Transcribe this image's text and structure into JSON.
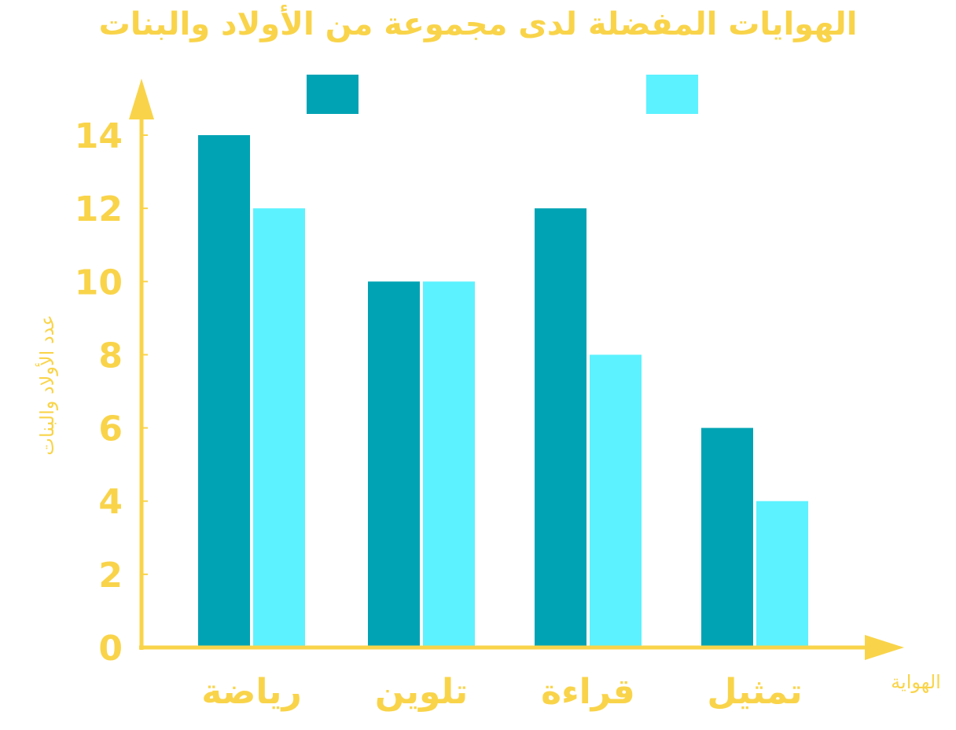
{
  "chart_data": {
    "type": "bar",
    "title": "الهوايات المفضلة لدى مجموعة من الأولاد والبنات",
    "xlabel": "الهواية",
    "ylabel": "عدد الأولاد والبنات",
    "categories": [
      "رياضة",
      "تلوين",
      "قراءة",
      "تمثيل"
    ],
    "series": [
      {
        "values": [
          14,
          10,
          12,
          6
        ],
        "color": "#00A3B4"
      },
      {
        "values": [
          12,
          10,
          8,
          4
        ],
        "color": "#5CF2FF"
      }
    ],
    "ylim": [
      0,
      14
    ],
    "yticks": [
      0,
      2,
      4,
      6,
      8,
      10,
      12,
      14
    ],
    "legend": "top",
    "grid": false,
    "axis_color": "#F9D44A"
  }
}
